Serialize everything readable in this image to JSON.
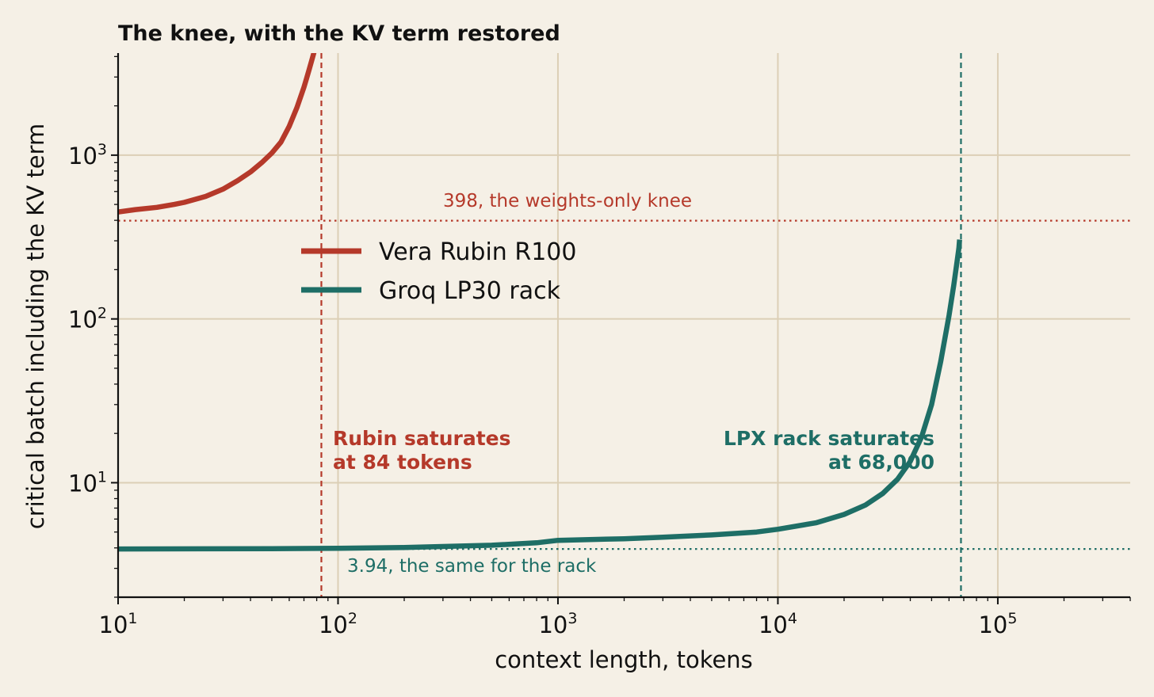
{
  "chart_data": {
    "type": "line",
    "title": "The knee, with the KV term restored",
    "xlabel": "context length, tokens",
    "ylabel": "critical batch including the KV term",
    "xscale": "log",
    "yscale": "log",
    "xlim": [
      10,
      400000
    ],
    "ylim": [
      2,
      4200
    ],
    "grid": true,
    "legend_position": "upper-left-center",
    "xtick_labels": [
      {
        "base": "10",
        "exp": "1",
        "value": 10
      },
      {
        "base": "10",
        "exp": "2",
        "value": 100
      },
      {
        "base": "10",
        "exp": "3",
        "value": 1000
      },
      {
        "base": "10",
        "exp": "4",
        "value": 10000
      },
      {
        "base": "10",
        "exp": "5",
        "value": 100000
      }
    ],
    "ytick_labels": [
      {
        "base": "10",
        "exp": "1",
        "value": 10
      },
      {
        "base": "10",
        "exp": "2",
        "value": 100
      },
      {
        "base": "10",
        "exp": "3",
        "value": 1000
      }
    ],
    "series": [
      {
        "name": "Vera Rubin R100",
        "color": "#b5392a",
        "x": [
          10,
          12,
          15,
          18,
          20,
          25,
          30,
          35,
          40,
          45,
          50,
          55,
          60,
          65,
          70,
          72,
          74,
          76,
          78
        ],
        "y": [
          450,
          465,
          480,
          500,
          515,
          560,
          620,
          700,
          790,
          900,
          1030,
          1200,
          1500,
          1950,
          2600,
          2950,
          3350,
          3800,
          4300
        ]
      },
      {
        "name": "Groq LP30 rack",
        "color": "#1e6e66",
        "x": [
          10,
          50,
          100,
          200,
          500,
          800,
          1000,
          2000,
          3000,
          5000,
          8000,
          10000,
          15000,
          20000,
          25000,
          30000,
          35000,
          40000,
          45000,
          50000,
          55000,
          60000,
          63000,
          65000,
          66500,
          67000
        ],
        "y": [
          3.94,
          3.96,
          3.98,
          4.02,
          4.15,
          4.3,
          4.45,
          4.55,
          4.65,
          4.8,
          5.0,
          5.2,
          5.7,
          6.4,
          7.3,
          8.6,
          10.5,
          13.5,
          19,
          30,
          55,
          105,
          160,
          215,
          270,
          305
        ]
      }
    ],
    "reference_lines": [
      {
        "orientation": "horizontal",
        "value": 398,
        "style": "dotted",
        "color": "#b5392a",
        "label": "398, the weights-only knee"
      },
      {
        "orientation": "horizontal",
        "value": 3.94,
        "style": "dotted",
        "color": "#1e6e66",
        "label": "3.94, the same for the rack"
      },
      {
        "orientation": "vertical",
        "value": 84,
        "style": "dashed",
        "color": "#b5392a"
      },
      {
        "orientation": "vertical",
        "value": 68000,
        "style": "dashed",
        "color": "#1e6e66"
      }
    ],
    "annotations": [
      {
        "lines": [
          "Rubin saturates",
          "at 84 tokens"
        ],
        "color": "#b5392a",
        "align": "left"
      },
      {
        "lines": [
          "LPX rack saturates",
          "at 68,000"
        ],
        "color": "#1e6e66",
        "align": "right"
      }
    ]
  }
}
